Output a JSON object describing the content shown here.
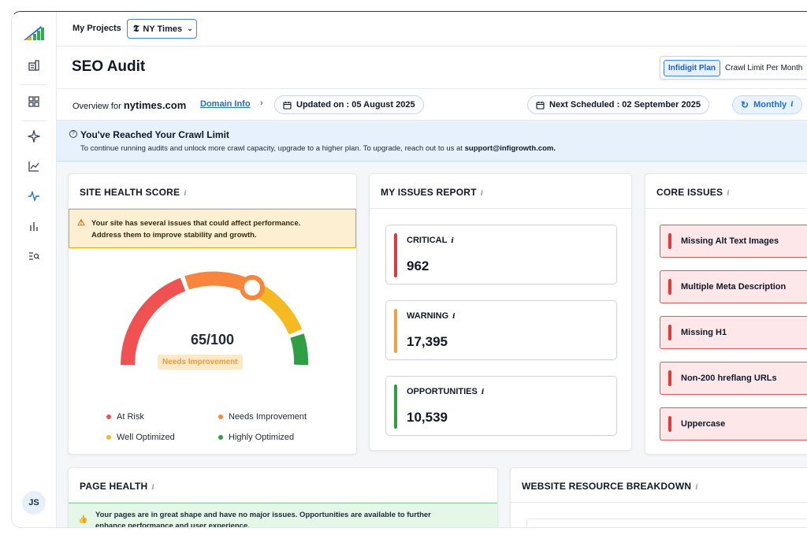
{
  "topbar": {
    "my_projects": "My Projects",
    "project": "NY Times",
    "project_logo": "𝕿"
  },
  "header": {
    "title": "SEO Audit",
    "plan_badge": "Infidigit Plan",
    "plan_text": "Crawl Limit Per Month"
  },
  "overview": {
    "label": "Overview for",
    "domain": "nytimes.com",
    "domain_info": "Domain Info",
    "updated": "Updated on : 05 August 2025",
    "next_scheduled": "Next Scheduled : 02 September 2025",
    "frequency": "Monthly"
  },
  "banner": {
    "title": "You've Reached Your Crawl Limit",
    "text": "To continue running audits and unlock more crawl capacity, upgrade to a higher plan. To upgrade, reach out to us at",
    "email": "support@infigrowth.com."
  },
  "site_health": {
    "title": "SITE HEALTH SCORE",
    "warning_line1": "Your site has several issues that could affect performance.",
    "warning_line2": "Address them to improve stability and growth.",
    "score": "65/100",
    "score_value": 65,
    "status": "Needs Improvement",
    "legend": [
      {
        "label": "At Risk",
        "color": "#f05252"
      },
      {
        "label": "Needs Improvement",
        "color": "#f7853b"
      },
      {
        "label": "Well Optimized",
        "color": "#f5b921"
      },
      {
        "label": "Highly Optimized",
        "color": "#2f9e44"
      }
    ]
  },
  "issues_report": {
    "title": "MY ISSUES REPORT",
    "items": [
      {
        "label": "CRITICAL",
        "value": "962",
        "color": "#e03b3b"
      },
      {
        "label": "WARNING",
        "value": "17,395",
        "color": "#f59e42"
      },
      {
        "label": "OPPORTUNITIES",
        "value": "10,539",
        "color": "#2f9e44"
      }
    ]
  },
  "core_issues": {
    "title": "CORE ISSUES",
    "items": [
      "Missing Alt Text Images",
      "Multiple Meta Description",
      "Missing H1",
      "Non-200 hreflang URLs",
      "Uppercase"
    ]
  },
  "page_health": {
    "title": "PAGE HEALTH",
    "line1": "Your pages are in great shape and have no major issues. Opportunities are available to further",
    "line2": "enhance performance and user experience."
  },
  "resource_breakdown": {
    "title": "WEBSITE RESOURCE BREAKDOWN"
  },
  "user": {
    "initials": "JS"
  },
  "colors": {
    "accent": "#1d6fd6",
    "critical": "#e03b3b",
    "warning": "#f59e42",
    "ok": "#2f9e44"
  }
}
